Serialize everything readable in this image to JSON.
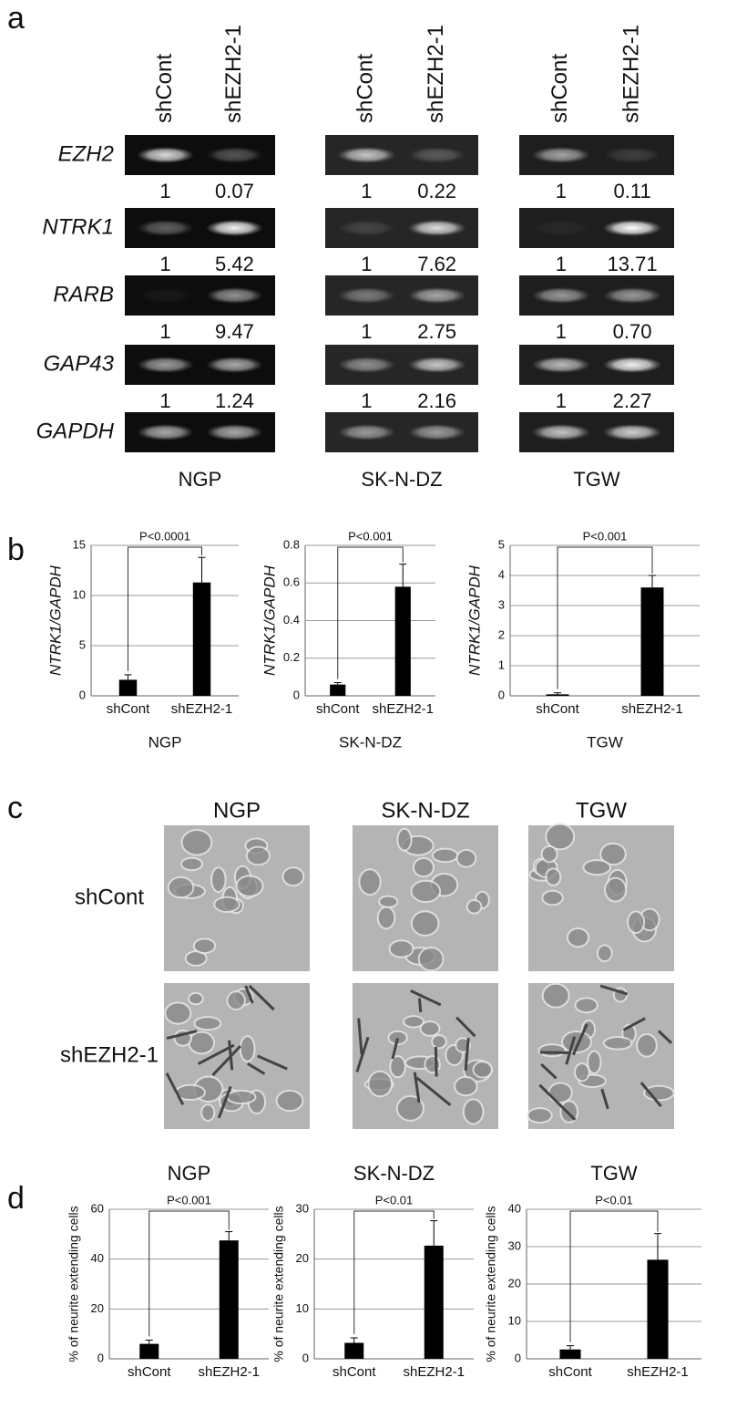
{
  "figure_labels": [
    "a",
    "b",
    "c",
    "d"
  ],
  "gel": {
    "lanes": [
      "shCont",
      "shEZH2-1"
    ],
    "genes": [
      "EZH2",
      "NTRK1",
      "RARB",
      "GAP43",
      "GAPDH"
    ],
    "cell_lines": [
      "NGP",
      "SK-N-DZ",
      "TGW"
    ],
    "ratios": [
      [
        [
          "1",
          "0.07"
        ],
        [
          "1",
          "5.42"
        ],
        [
          "1",
          "9.47"
        ],
        [
          "1",
          "1.24"
        ]
      ],
      [
        [
          "1",
          "0.22"
        ],
        [
          "1",
          "7.62"
        ],
        [
          "1",
          "2.75"
        ],
        [
          "1",
          "2.16"
        ]
      ],
      [
        [
          "1",
          "0.11"
        ],
        [
          "1",
          "13.71"
        ],
        [
          "1",
          "0.70"
        ],
        [
          "1",
          "2.27"
        ]
      ]
    ]
  },
  "images": {
    "cell_lines": [
      "NGP",
      "SK-N-DZ",
      "TGW"
    ],
    "conditions": [
      "shCont",
      "shEZH2-1"
    ]
  },
  "chart_data": [
    {
      "type": "bar",
      "xlabel": "NGP",
      "ylabel": "NTRK1/GAPDH",
      "categories": [
        "shCont",
        "shEZH2-1"
      ],
      "values": [
        1.6,
        11.3
      ],
      "errors": [
        0.5,
        2.5
      ],
      "color": "#000000",
      "ylim": [
        0,
        15
      ],
      "yticks": [
        0,
        5,
        10,
        15
      ],
      "grid": true,
      "annotation": "P<0.0001"
    },
    {
      "type": "bar",
      "xlabel": "SK-N-DZ",
      "ylabel": "NTRK1/GAPDH",
      "categories": [
        "shCont",
        "shEZH2-1"
      ],
      "values": [
        0.06,
        0.58
      ],
      "errors": [
        0.01,
        0.12
      ],
      "color": "#000000",
      "ylim": [
        0,
        0.8
      ],
      "yticks": [
        0,
        0.2,
        0.4,
        0.6,
        0.8
      ],
      "grid": true,
      "annotation": "P<0.001"
    },
    {
      "type": "bar",
      "xlabel": "TGW",
      "ylabel": "NTRK1/GAPDH",
      "categories": [
        "shCont",
        "shEZH2-1"
      ],
      "values": [
        0.05,
        3.6
      ],
      "errors": [
        0.05,
        0.4
      ],
      "color": "#000000",
      "ylim": [
        0,
        5
      ],
      "yticks": [
        0,
        1,
        2,
        3,
        4,
        5
      ],
      "grid": true,
      "annotation": "P<0.001"
    },
    {
      "type": "bar",
      "title": "NGP",
      "ylabel": "% of neurite extending cells",
      "categories": [
        "shCont",
        "shEZH2-1"
      ],
      "values": [
        6,
        47.5
      ],
      "errors": [
        1.5,
        3.5
      ],
      "color": "#000000",
      "ylim": [
        0,
        60
      ],
      "yticks": [
        0,
        20,
        40,
        60
      ],
      "grid": true,
      "annotation": "P<0.001"
    },
    {
      "type": "bar",
      "title": "SK-N-DZ",
      "ylabel": "% of neurite extending cells",
      "categories": [
        "shCont",
        "shEZH2-1"
      ],
      "values": [
        3.2,
        22.7
      ],
      "errors": [
        1,
        5
      ],
      "color": "#000000",
      "ylim": [
        0,
        30
      ],
      "yticks": [
        0,
        10,
        20,
        30
      ],
      "grid": true,
      "annotation": "P<0.01"
    },
    {
      "type": "bar",
      "title": "TGW",
      "ylabel": "% of neurite extending cells",
      "categories": [
        "shCont",
        "shEZH2-1"
      ],
      "values": [
        2.5,
        26.5
      ],
      "errors": [
        1,
        7
      ],
      "color": "#000000",
      "ylim": [
        0,
        40
      ],
      "yticks": [
        0,
        10,
        20,
        30,
        40
      ],
      "grid": true,
      "annotation": "P<0.01"
    }
  ]
}
